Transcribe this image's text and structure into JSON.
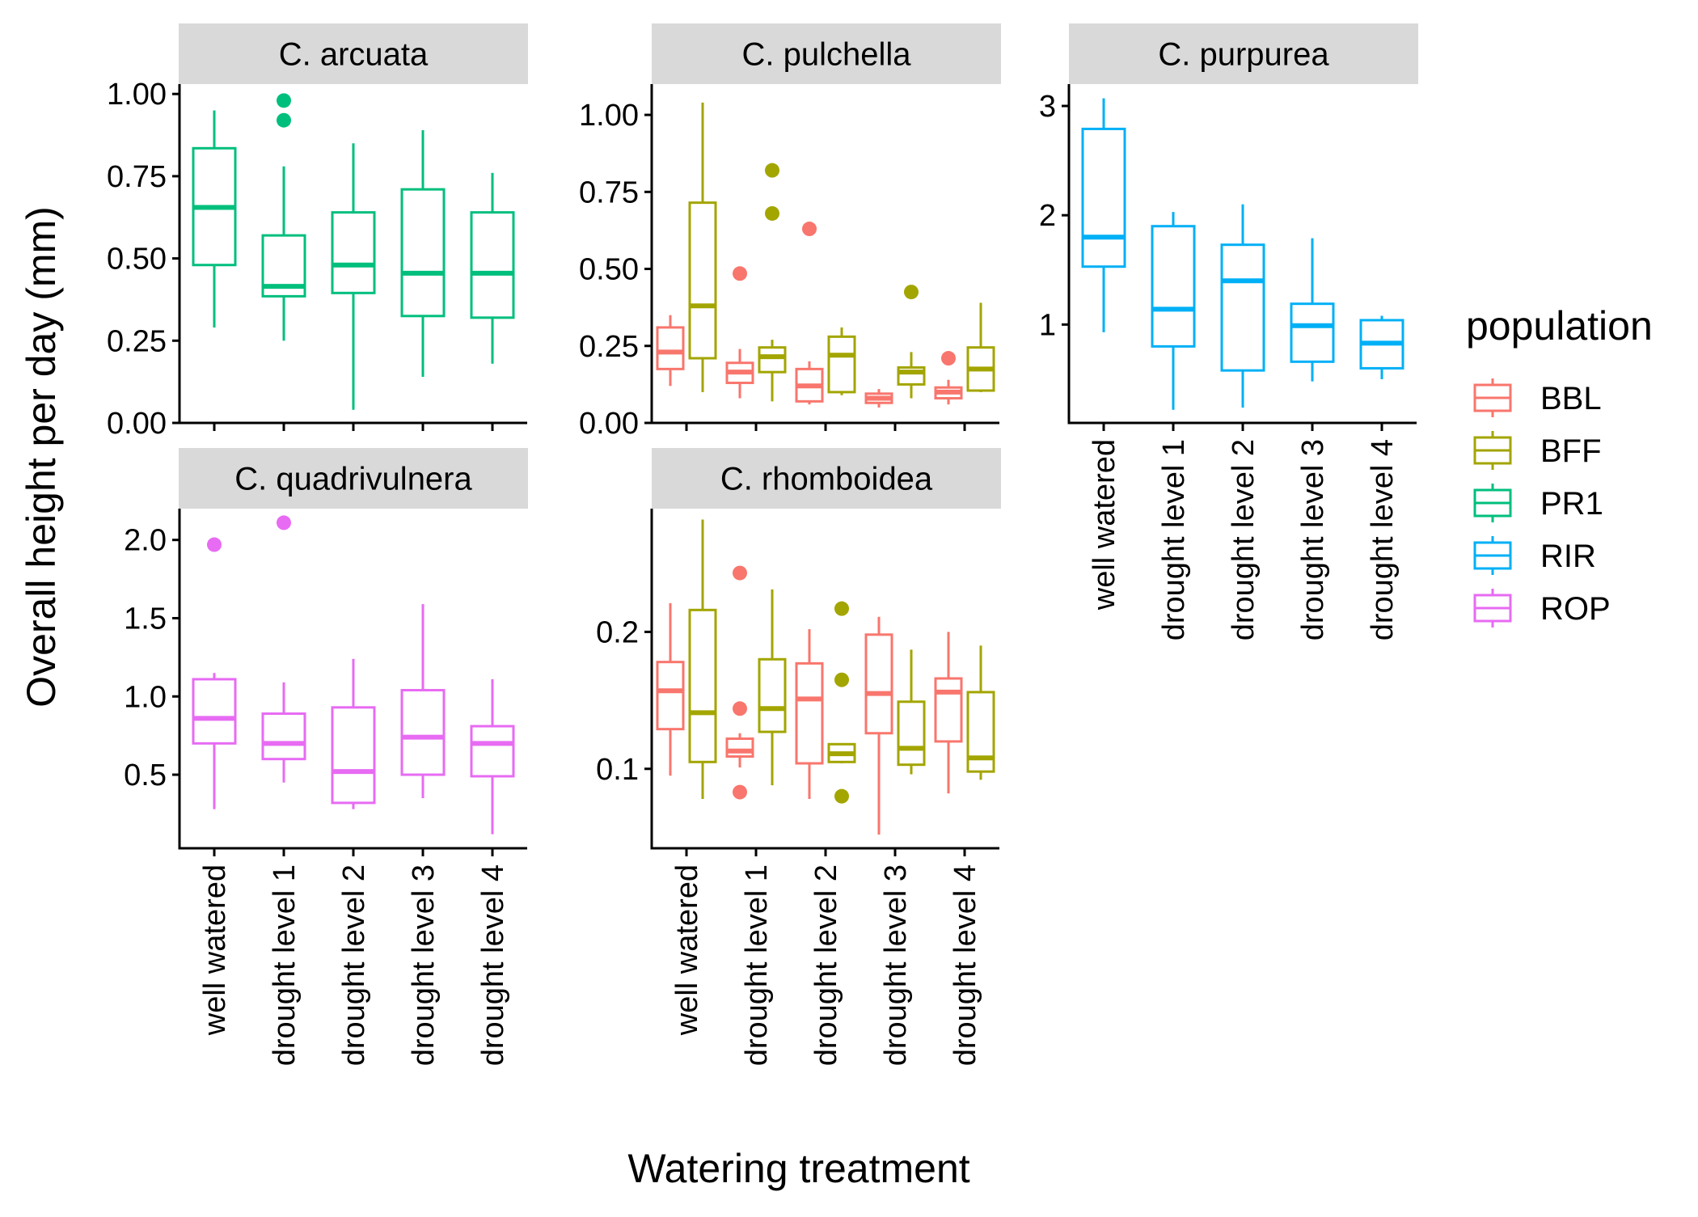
{
  "chart_data": {
    "type": "boxplot",
    "xlabel": "Watering treatment",
    "ylabel": "Overall height per day (mm)",
    "categories": [
      "well watered",
      "drought level 1",
      "drought level 2",
      "drought level 3",
      "drought level 4"
    ],
    "legend": {
      "title": "population",
      "placement": "right",
      "entries": [
        {
          "name": "BBL",
          "color": "#F8766D"
        },
        {
          "name": "BFF",
          "color": "#A3A500"
        },
        {
          "name": "PR1",
          "color": "#00BF7D"
        },
        {
          "name": "RIR",
          "color": "#00B0F6"
        },
        {
          "name": "ROP",
          "color": "#E76BF3"
        }
      ]
    },
    "panels": [
      {
        "title": "C. arcuata",
        "ylim": [
          0,
          1.03
        ],
        "yticks": [
          0,
          0.25,
          0.5,
          0.75,
          1.0
        ],
        "ytick_labels": [
          "0.00",
          "0.25",
          "0.50",
          "0.75",
          "1.00"
        ],
        "series": [
          {
            "name": "PR1",
            "boxes": [
              {
                "category": "well watered",
                "min": 0.29,
                "q1": 0.48,
                "median": 0.655,
                "q3": 0.835,
                "max": 0.95,
                "outliers": []
              },
              {
                "category": "drought level 1",
                "min": 0.25,
                "q1": 0.385,
                "median": 0.415,
                "q3": 0.57,
                "max": 0.78,
                "outliers": [
                  0.92,
                  0.98
                ]
              },
              {
                "category": "drought level 2",
                "min": 0.04,
                "q1": 0.395,
                "median": 0.48,
                "q3": 0.64,
                "max": 0.85,
                "outliers": []
              },
              {
                "category": "drought level 3",
                "min": 0.14,
                "q1": 0.325,
                "median": 0.455,
                "q3": 0.71,
                "max": 0.89,
                "outliers": []
              },
              {
                "category": "drought level 4",
                "min": 0.18,
                "q1": 0.32,
                "median": 0.455,
                "q3": 0.64,
                "max": 0.76,
                "outliers": []
              }
            ]
          }
        ]
      },
      {
        "title": "C. pulchella",
        "ylim": [
          0,
          1.1
        ],
        "yticks": [
          0,
          0.25,
          0.5,
          0.75,
          1.0
        ],
        "ytick_labels": [
          "0.00",
          "0.25",
          "0.50",
          "0.75",
          "1.00"
        ],
        "series": [
          {
            "name": "BBL",
            "boxes": [
              {
                "category": "well watered",
                "min": 0.12,
                "q1": 0.175,
                "median": 0.23,
                "q3": 0.31,
                "max": 0.35,
                "outliers": []
              },
              {
                "category": "drought level 1",
                "min": 0.08,
                "q1": 0.13,
                "median": 0.165,
                "q3": 0.195,
                "max": 0.24,
                "outliers": [
                  0.485
                ]
              },
              {
                "category": "drought level 2",
                "min": 0.06,
                "q1": 0.07,
                "median": 0.12,
                "q3": 0.175,
                "max": 0.2,
                "outliers": [
                  0.63
                ]
              },
              {
                "category": "drought level 3",
                "min": 0.05,
                "q1": 0.065,
                "median": 0.08,
                "q3": 0.095,
                "max": 0.11,
                "outliers": []
              },
              {
                "category": "drought level 4",
                "min": 0.06,
                "q1": 0.08,
                "median": 0.1,
                "q3": 0.115,
                "max": 0.14,
                "outliers": [
                  0.21
                ]
              }
            ]
          },
          {
            "name": "BFF",
            "boxes": [
              {
                "category": "well watered",
                "min": 0.1,
                "q1": 0.21,
                "median": 0.38,
                "q3": 0.715,
                "max": 1.04,
                "outliers": []
              },
              {
                "category": "drought level 1",
                "min": 0.07,
                "q1": 0.165,
                "median": 0.215,
                "q3": 0.245,
                "max": 0.27,
                "outliers": [
                  0.68,
                  0.82
                ]
              },
              {
                "category": "drought level 2",
                "min": 0.09,
                "q1": 0.1,
                "median": 0.22,
                "q3": 0.28,
                "max": 0.31,
                "outliers": []
              },
              {
                "category": "drought level 3",
                "min": 0.08,
                "q1": 0.125,
                "median": 0.165,
                "q3": 0.18,
                "max": 0.23,
                "outliers": [
                  0.425
                ]
              },
              {
                "category": "drought level 4",
                "min": 0.1,
                "q1": 0.105,
                "median": 0.175,
                "q3": 0.245,
                "max": 0.39,
                "outliers": []
              }
            ]
          }
        ]
      },
      {
        "title": "C. purpurea",
        "ylim": [
          0.1,
          3.2
        ],
        "yticks": [
          1,
          2,
          3
        ],
        "ytick_labels": [
          "1",
          "2",
          "3"
        ],
        "series": [
          {
            "name": "RIR",
            "boxes": [
              {
                "category": "well watered",
                "min": 0.93,
                "q1": 1.53,
                "median": 1.8,
                "q3": 2.79,
                "max": 3.07,
                "outliers": []
              },
              {
                "category": "drought level 1",
                "min": 0.22,
                "q1": 0.8,
                "median": 1.14,
                "q3": 1.9,
                "max": 2.03,
                "outliers": []
              },
              {
                "category": "drought level 2",
                "min": 0.24,
                "q1": 0.58,
                "median": 1.4,
                "q3": 1.73,
                "max": 2.1,
                "outliers": []
              },
              {
                "category": "drought level 3",
                "min": 0.48,
                "q1": 0.66,
                "median": 0.99,
                "q3": 1.19,
                "max": 1.79,
                "outliers": []
              },
              {
                "category": "drought level 4",
                "min": 0.5,
                "q1": 0.6,
                "median": 0.83,
                "q3": 1.04,
                "max": 1.08,
                "outliers": []
              }
            ]
          }
        ]
      },
      {
        "title": "C. quadrivulnera",
        "ylim": [
          0.03,
          2.2
        ],
        "yticks": [
          0.5,
          1.0,
          1.5,
          2.0
        ],
        "ytick_labels": [
          "0.5",
          "1.0",
          "1.5",
          "2.0"
        ],
        "series": [
          {
            "name": "ROP",
            "boxes": [
              {
                "category": "well watered",
                "min": 0.28,
                "q1": 0.7,
                "median": 0.86,
                "q3": 1.11,
                "max": 1.15,
                "outliers": [
                  1.97
                ]
              },
              {
                "category": "drought level 1",
                "min": 0.45,
                "q1": 0.6,
                "median": 0.7,
                "q3": 0.89,
                "max": 1.09,
                "outliers": [
                  2.11
                ]
              },
              {
                "category": "drought level 2",
                "min": 0.28,
                "q1": 0.32,
                "median": 0.52,
                "q3": 0.93,
                "max": 1.24,
                "outliers": []
              },
              {
                "category": "drought level 3",
                "min": 0.35,
                "q1": 0.5,
                "median": 0.74,
                "q3": 1.04,
                "max": 1.59,
                "outliers": []
              },
              {
                "category": "drought level 4",
                "min": 0.12,
                "q1": 0.49,
                "median": 0.7,
                "q3": 0.81,
                "max": 1.11,
                "outliers": []
              }
            ]
          }
        ]
      },
      {
        "title": "C. rhomboidea",
        "ylim": [
          0.042,
          0.29
        ],
        "yticks": [
          0.1,
          0.2
        ],
        "ytick_labels": [
          "0.1",
          "0.2"
        ],
        "series": [
          {
            "name": "BBL",
            "boxes": [
              {
                "category": "well watered",
                "min": 0.095,
                "q1": 0.129,
                "median": 0.157,
                "q3": 0.178,
                "max": 0.221,
                "outliers": []
              },
              {
                "category": "drought level 1",
                "min": 0.101,
                "q1": 0.109,
                "median": 0.113,
                "q3": 0.122,
                "max": 0.126,
                "outliers": [
                  0.083,
                  0.144,
                  0.243
                ]
              },
              {
                "category": "drought level 2",
                "min": 0.078,
                "q1": 0.104,
                "median": 0.151,
                "q3": 0.177,
                "max": 0.202,
                "outliers": []
              },
              {
                "category": "drought level 3",
                "min": 0.052,
                "q1": 0.126,
                "median": 0.155,
                "q3": 0.198,
                "max": 0.211,
                "outliers": []
              },
              {
                "category": "drought level 4",
                "min": 0.082,
                "q1": 0.12,
                "median": 0.156,
                "q3": 0.166,
                "max": 0.2,
                "outliers": []
              }
            ]
          },
          {
            "name": "BFF",
            "boxes": [
              {
                "category": "well watered",
                "min": 0.078,
                "q1": 0.105,
                "median": 0.141,
                "q3": 0.216,
                "max": 0.282,
                "outliers": []
              },
              {
                "category": "drought level 1",
                "min": 0.088,
                "q1": 0.127,
                "median": 0.144,
                "q3": 0.18,
                "max": 0.231,
                "outliers": []
              },
              {
                "category": "drought level 2",
                "min": 0.104,
                "q1": 0.105,
                "median": 0.111,
                "q3": 0.118,
                "max": 0.118,
                "outliers": [
                  0.08,
                  0.165,
                  0.217
                ]
              },
              {
                "category": "drought level 3",
                "min": 0.096,
                "q1": 0.103,
                "median": 0.115,
                "q3": 0.149,
                "max": 0.187,
                "outliers": []
              },
              {
                "category": "drought level 4",
                "min": 0.092,
                "q1": 0.098,
                "median": 0.108,
                "q3": 0.156,
                "max": 0.19,
                "outliers": []
              }
            ]
          }
        ]
      }
    ]
  }
}
